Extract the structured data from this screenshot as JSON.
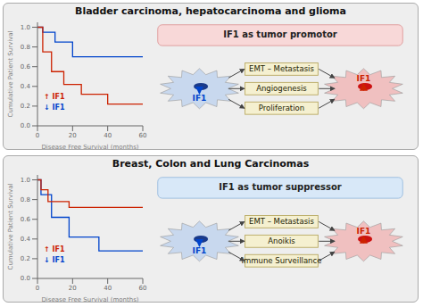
{
  "chart_data": [
    {
      "type": "step",
      "title": "Bladder carcinoma, hepatocarcinoma and glioma",
      "subtitle": "IF1 as tumor promotor",
      "x_label": "Disease Free Survival (months)",
      "y_label": "Cumulative Patient Survival",
      "xlim": [
        0,
        60
      ],
      "xticks": [
        0,
        20,
        40,
        60
      ],
      "ylim": [
        0,
        1.05
      ],
      "yticks": [
        {
          "value": 0,
          "label": "0.0"
        },
        0.2,
        0.4,
        0.6,
        0.8,
        {
          "value": 1,
          "label": "1.0"
        }
      ],
      "grid": false,
      "series": [
        {
          "color": "#0044cc",
          "x": [
            0,
            3,
            3,
            10,
            10,
            20,
            20,
            60
          ],
          "values": [
            1.0,
            1.0,
            0.95,
            0.95,
            0.85,
            0.85,
            0.7,
            0.7
          ]
        },
        {
          "color": "#cc2200",
          "x": [
            0,
            3,
            3,
            8,
            8,
            15,
            15,
            25,
            25,
            40,
            40,
            60
          ],
          "values": [
            1.0,
            1.0,
            0.75,
            0.75,
            0.55,
            0.55,
            0.42,
            0.42,
            0.32,
            0.32,
            0.22,
            0.22
          ]
        }
      ],
      "annotations": [
        {
          "text": "↑ IF1",
          "color": "#cc2200"
        },
        {
          "text": "↓ IF1",
          "color": "#0044cc"
        }
      ],
      "diagram": {
        "subtitle_color": "#f8d8d8",
        "subtitle_edge": "#e0a0a0",
        "pathways": [
          "EMT – Metastasis",
          "Angiogenesis",
          "Proliferation"
        ],
        "cells": [
          {
            "label": "IF1",
            "marker": "down",
            "color": "#0044cc",
            "fill": "#c8d8ee",
            "nucleus": "#1a3a8a"
          },
          {
            "label": "IF1",
            "marker": "up",
            "color": "#cc2200",
            "fill": "#f0c0c0",
            "nucleus": "#cc1111"
          }
        ],
        "box_color": "#f5f0d0",
        "box_edge": "#b8a860",
        "arrow_color": "#444444"
      }
    },
    {
      "type": "step",
      "title": "Breast, Colon and Lung Carcinomas",
      "subtitle": "IF1 as tumor suppressor",
      "x_label": "Disease Free Survival (months)",
      "y_label": "Cumulative Patient Survival",
      "xlim": [
        0,
        60
      ],
      "xticks": [
        0,
        20,
        40,
        60
      ],
      "ylim": [
        0,
        1.05
      ],
      "yticks": [
        {
          "value": 0,
          "label": "0.0"
        },
        0.2,
        0.4,
        0.6,
        0.8,
        {
          "value": 1,
          "label": "1.0"
        }
      ],
      "grid": false,
      "series": [
        {
          "color": "#0044cc",
          "x": [
            0,
            2,
            2,
            8,
            8,
            18,
            18,
            35,
            35,
            60
          ],
          "values": [
            1.0,
            1.0,
            0.85,
            0.85,
            0.62,
            0.62,
            0.42,
            0.42,
            0.28,
            0.28
          ]
        },
        {
          "color": "#cc2200",
          "x": [
            0,
            2,
            2,
            6,
            6,
            18,
            18,
            60
          ],
          "values": [
            1.0,
            1.0,
            0.9,
            0.9,
            0.78,
            0.78,
            0.72,
            0.72
          ]
        }
      ],
      "annotations": [
        {
          "text": "↑ IF1",
          "color": "#cc2200"
        },
        {
          "text": "↓ IF1",
          "color": "#0044cc"
        }
      ],
      "diagram": {
        "subtitle_color": "#d8e8f8",
        "subtitle_edge": "#a0c0e0",
        "pathways": [
          "EMT – Metastasis",
          "Anoikis",
          "Immune Surveillance"
        ],
        "cells": [
          {
            "label": "IF1",
            "marker": "down",
            "color": "#0044cc",
            "fill": "#c8d8ee",
            "nucleus": "#1a3a8a"
          },
          {
            "label": "IF1",
            "marker": "up",
            "color": "#cc2200",
            "fill": "#f0c0c0",
            "nucleus": "#cc1111"
          }
        ],
        "box_color": "#f5f0d0",
        "box_edge": "#b8a860",
        "arrow_color": "#444444"
      }
    }
  ]
}
